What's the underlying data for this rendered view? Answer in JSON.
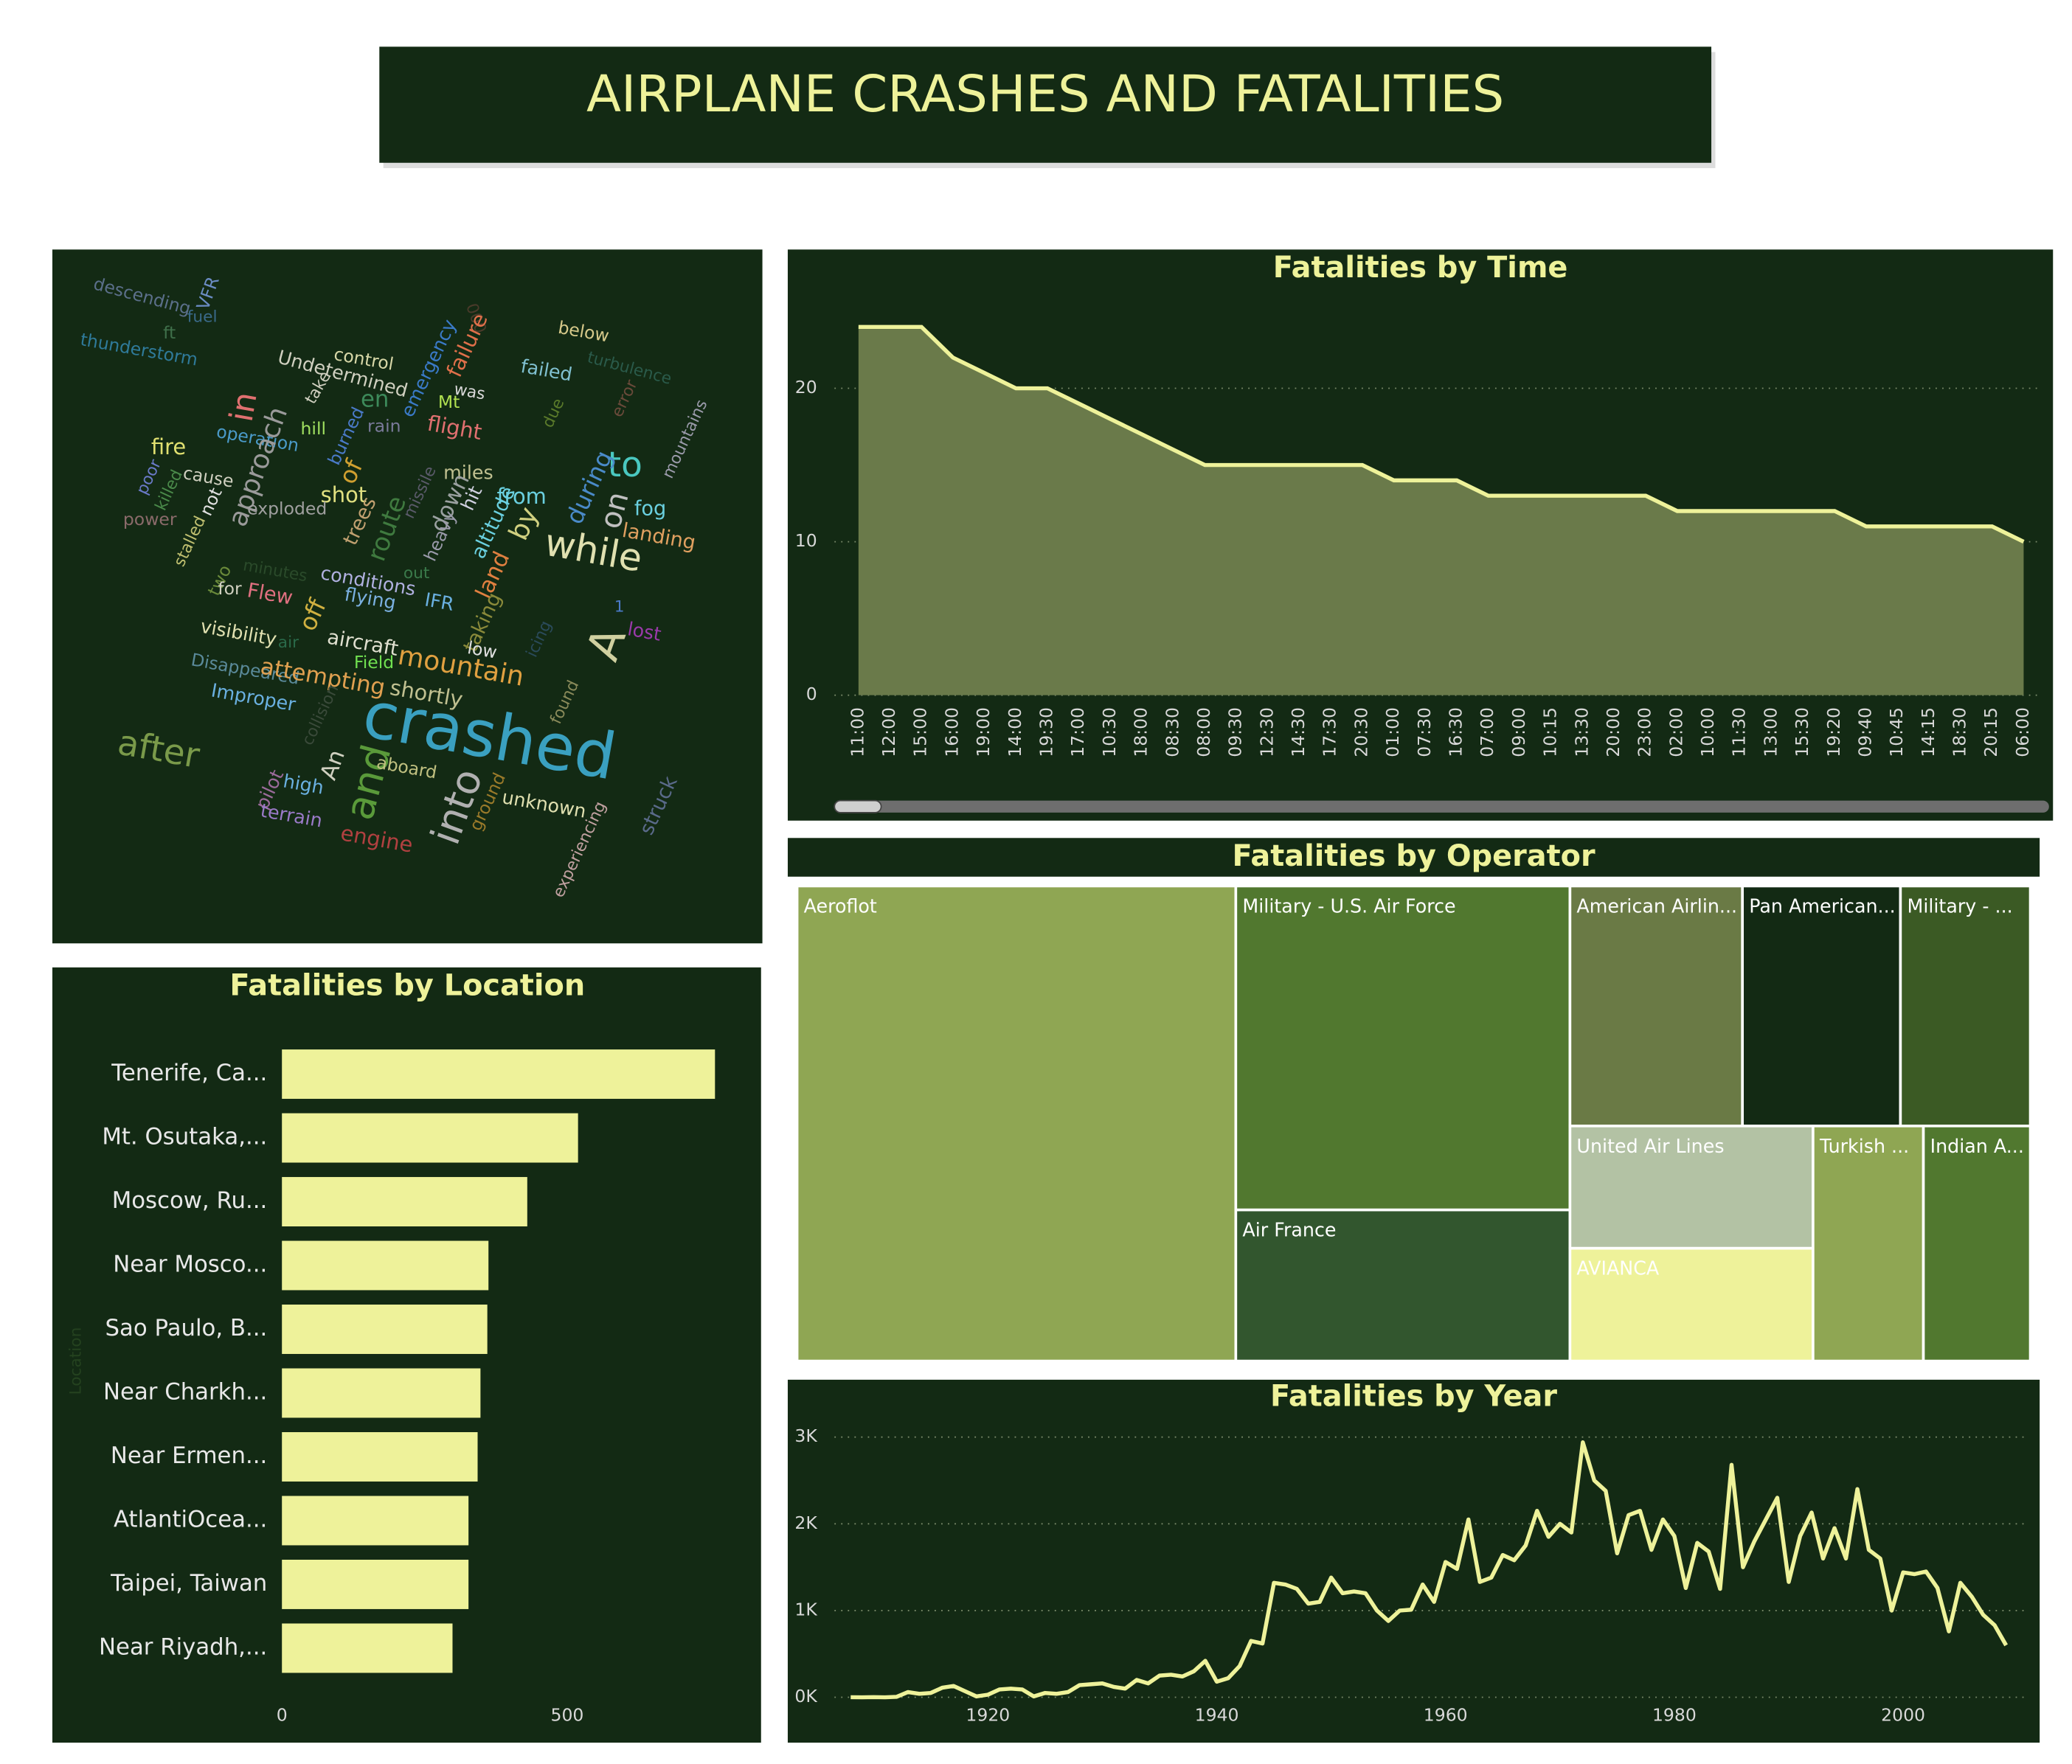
{
  "title": "AIRPLANE CRASHES AND FATALITIES",
  "chart_data": [
    {
      "type": "area",
      "title": "Fatalities by Time",
      "color": "#eef29a",
      "fill": "#6a7a4a",
      "categories": [
        "11:00",
        "12:00",
        "15:00",
        "16:00",
        "19:00",
        "14:00",
        "19:30",
        "17:00",
        "10:30",
        "18:00",
        "08:30",
        "08:00",
        "09:30",
        "12:30",
        "14:30",
        "17:30",
        "20:30",
        "01:00",
        "07:30",
        "16:30",
        "07:00",
        "09:00",
        "10:15",
        "13:30",
        "20:00",
        "23:00",
        "02:00",
        "10:00",
        "11:30",
        "13:00",
        "15:30",
        "19:20",
        "09:40",
        "10:45",
        "14:15",
        "18:30",
        "20:15",
        "06:00"
      ],
      "values": [
        24,
        24,
        24,
        22,
        21,
        20,
        20,
        19,
        18,
        17,
        16,
        15,
        15,
        15,
        15,
        15,
        15,
        14,
        14,
        14,
        13,
        13,
        13,
        13,
        13,
        13,
        12,
        12,
        12,
        12,
        12,
        12,
        11,
        11,
        11,
        11,
        11,
        10
      ],
      "ylim": [
        0,
        25
      ],
      "yticks": [
        0,
        10,
        20
      ],
      "grid": true
    },
    {
      "type": "treemap",
      "title": "Fatalities by Operator",
      "categories": [
        "Aeroflot",
        "Military - U.S. Air Force",
        "Air France",
        "American Airlin...",
        "Pan American...",
        "Military - ...",
        "United Air Lines",
        "AVIANCA",
        "Turkish ...",
        "Indian A..."
      ],
      "values": [
        7156,
        3717,
        1734,
        1421,
        1302,
        1070,
        1021,
        941,
        891,
        863
      ],
      "colors": [
        "#8fa653",
        "#51782f",
        "#32562e",
        "#6a7a45",
        "#132a14",
        "#3b5a24",
        "#b3c2a4",
        "#eef29a",
        "#8fa653",
        "#51782f"
      ]
    },
    {
      "type": "hbar",
      "title": "Fatalities by Location",
      "y_label": "Location",
      "color": "#eef29a",
      "categories": [
        "Tenerife, Ca...",
        "Mt. Osutaka,...",
        "Moscow, Ru...",
        "Near Mosco...",
        "Sao Paulo, B...",
        "Near Charkh...",
        "Near Ermen...",
        "AtlantiOcea...",
        "Taipei, Taiwan",
        "Near Riyadh,..."
      ],
      "values": [
        759,
        519,
        430,
        362,
        360,
        348,
        343,
        327,
        327,
        299
      ],
      "xlim": [
        0,
        800
      ],
      "xticks": [
        0,
        500
      ]
    },
    {
      "type": "line",
      "title": "Fatalities by Year",
      "color": "#eef29a",
      "x": [
        1908,
        1909,
        1910,
        1911,
        1912,
        1913,
        1914,
        1915,
        1916,
        1917,
        1918,
        1919,
        1920,
        1921,
        1922,
        1923,
        1924,
        1925,
        1926,
        1927,
        1928,
        1929,
        1930,
        1931,
        1932,
        1933,
        1934,
        1935,
        1936,
        1937,
        1938,
        1939,
        1940,
        1941,
        1942,
        1943,
        1944,
        1945,
        1946,
        1947,
        1948,
        1949,
        1950,
        1951,
        1952,
        1953,
        1954,
        1955,
        1956,
        1957,
        1958,
        1959,
        1960,
        1961,
        1962,
        1963,
        1964,
        1965,
        1966,
        1967,
        1968,
        1969,
        1970,
        1971,
        1972,
        1973,
        1974,
        1975,
        1976,
        1977,
        1978,
        1979,
        1980,
        1981,
        1982,
        1983,
        1984,
        1985,
        1986,
        1987,
        1988,
        1989,
        1990,
        1991,
        1992,
        1993,
        1994,
        1995,
        1996,
        1997,
        1998,
        1999,
        2000,
        2001,
        2002,
        2003,
        2004,
        2005,
        2006,
        2007,
        2008,
        2009
      ],
      "values": [
        1,
        0,
        2,
        0,
        5,
        60,
        40,
        50,
        110,
        130,
        70,
        10,
        30,
        90,
        100,
        90,
        10,
        50,
        40,
        60,
        140,
        150,
        160,
        120,
        100,
        200,
        160,
        250,
        260,
        240,
        300,
        420,
        180,
        220,
        360,
        650,
        620,
        1320,
        1300,
        1250,
        1080,
        1100,
        1380,
        1200,
        1220,
        1200,
        1000,
        880,
        1000,
        1010,
        1300,
        1100,
        1560,
        1480,
        2050,
        1330,
        1380,
        1640,
        1580,
        1750,
        2150,
        1850,
        2000,
        1900,
        2940,
        2500,
        2380,
        1660,
        2100,
        2150,
        1700,
        2050,
        1860,
        1260,
        1780,
        1680,
        1250,
        2680,
        1500,
        1800,
        2050,
        2300,
        1330,
        1860,
        2130,
        1600,
        1950,
        1600,
        2400,
        1700,
        1600,
        1000,
        1440,
        1420,
        1450,
        1260,
        760,
        1320,
        1160,
        950,
        830,
        600
      ],
      "xlim": [
        1906,
        2011
      ],
      "xticks": [
        1920,
        1940,
        1960,
        1980,
        2000
      ],
      "ylim": [
        0,
        3300
      ],
      "yticks": [
        {
          "value": 0,
          "label": "0K"
        },
        {
          "value": 1000,
          "label": "1K"
        },
        {
          "value": 2000,
          "label": "2K"
        },
        {
          "value": 3000,
          "label": "3K"
        }
      ],
      "grid": true
    },
    {
      "type": "wordcloud",
      "words": [
        "descending",
        "VFR",
        "fuel",
        "ft",
        "thunderstorm",
        "000",
        "below",
        "failure",
        "control",
        "Undetermined",
        "emergency",
        "turbulence",
        "failed",
        "take",
        "en",
        "was",
        "Mt",
        "rain",
        "in",
        "error",
        "flight",
        "hill",
        "due",
        "mountains",
        "operation",
        "burned",
        "to",
        "fire",
        "of",
        "poor",
        "cause",
        "approach",
        "killed",
        "missile",
        "miles",
        "shot",
        "from",
        "during",
        "on",
        "fog",
        "down",
        "hit",
        "exploded",
        "not",
        "power",
        "trees",
        "landing",
        "altitude",
        "heavy",
        "by",
        "route",
        "while",
        "stalled",
        "minutes",
        "out",
        "conditions",
        "two",
        "land",
        "for",
        "Flew",
        "flying",
        "IFR",
        "off",
        "1",
        "A",
        "taking",
        "visibility",
        "lost",
        "air",
        "aircraft",
        "low",
        "icing",
        "mountain",
        "Field",
        "Disappeared",
        "attempting",
        "shortly",
        "found",
        "Improper",
        "crashed",
        "collision",
        "after",
        "An",
        "and",
        "aboard",
        "into",
        "ground",
        "unknown",
        "struck",
        "high",
        "pilot",
        "terrain",
        "engine",
        "experiencing"
      ],
      "colors": [
        "#5b6f8a",
        "#6b8cc4",
        "#3a6a8a",
        "#3f6f4a",
        "#2f7a9a",
        "#4a3a2a",
        "#d6c98a",
        "#e0704a",
        "#d8d8a8",
        "#d0d0c0",
        "#3a7ac8",
        "#2a5a4a",
        "#80c0d0",
        "#d0d0c0",
        "#3d8a5a",
        "#d8d8d8",
        "#b0e050",
        "#7a7a9a",
        "#e07070",
        "#6a4a3a",
        "#e07070",
        "#a0e060",
        "#5a7a2a",
        "#9a9aaa",
        "#4a9ac8",
        "#4a7ac8",
        "#4ac8c0",
        "#e0e070",
        "#d0a030",
        "#6a7ac8",
        "#d0d0c0",
        "#9a9a9a",
        "#4a8a4a",
        "#5a5a6a",
        "#c0c090",
        "#e0e080",
        "#6ad0e0",
        "#4a8ac8",
        "#c0c0c0",
        "#6ad0e0",
        "#9aa0a0",
        "#d0d0e0",
        "#a0a0a0",
        "#e0e0e0",
        "#8a6a6a",
        "#c0a070",
        "#e0a060",
        "#6ad0e0",
        "#9a9aaa",
        "#d0d080",
        "#3f7a3f",
        "#e0e0b0",
        "#c0c070",
        "#2a4a2a",
        "#3a7a4a",
        "#b0b0e0",
        "#6a8a3a",
        "#e08040",
        "#d0d0c0",
        "#e07080",
        "#7ab0e0",
        "#6ab0e0",
        "#d0b040",
        "#4a7ac8",
        "#d0d0a0",
        "#8a8a3a",
        "#e0e0b0",
        "#9a3aaa",
        "#2a6a4a",
        "#e0e0d0",
        "#e0e0e0",
        "#2a4a5a",
        "#e0a040",
        "#70e050",
        "#5a8a9a",
        "#e0a050",
        "#c0c090",
        "#8a8a5a",
        "#6ab0e0",
        "#3aa0c0",
        "#3a4a3a",
        "#7a9a4a",
        "#d0d0c0",
        "#5a9a3a",
        "#c0c080",
        "#b0b0b0",
        "#9a7a2a",
        "#e0e0b0",
        "#5a6a8a",
        "#6ab0e0",
        "#9a6a9a",
        "#9a7ac8",
        "#b04040",
        "#c0a0a0"
      ]
    }
  ]
}
